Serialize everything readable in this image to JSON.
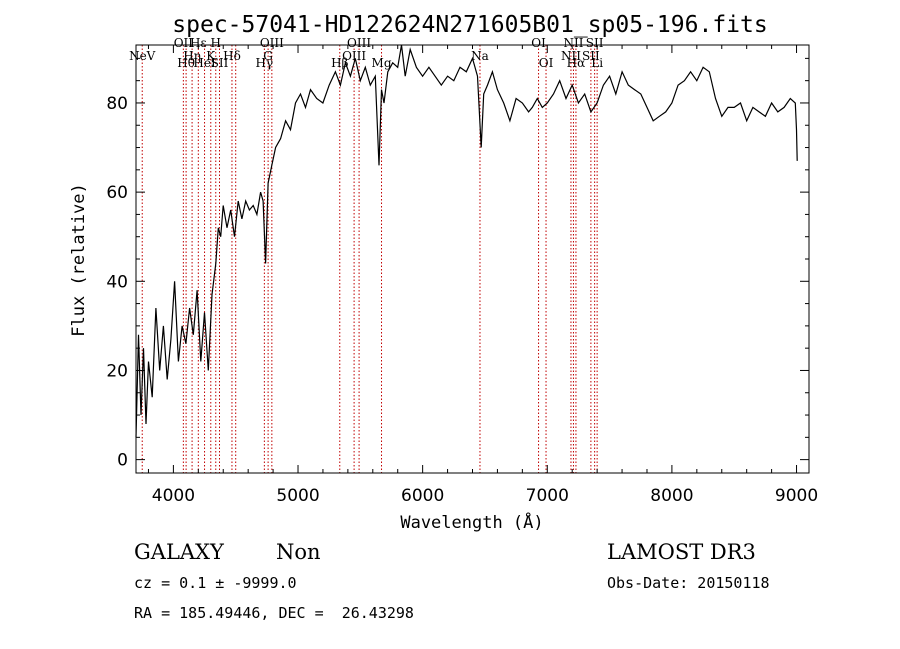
{
  "chart_data": {
    "type": "line",
    "title": "spec-57041-HD122624N271605B01_sp05-196.fits",
    "xlabel": "Wavelength (Å)",
    "ylabel": "Flux (relative)",
    "xlim": [
      3700,
      9100
    ],
    "ylim": [
      -3,
      93
    ],
    "x_ticks": [
      4000,
      5000,
      6000,
      7000,
      8000,
      9000
    ],
    "y_ticks": [
      0,
      20,
      40,
      60,
      80
    ],
    "series": [
      {
        "color": "#000000",
        "x": [
          3700,
          3720,
          3740,
          3760,
          3780,
          3800,
          3830,
          3860,
          3890,
          3920,
          3950,
          3980,
          4010,
          4040,
          4070,
          4100,
          4130,
          4160,
          4190,
          4220,
          4250,
          4280,
          4310,
          4340,
          4360,
          4380,
          4400,
          4430,
          4460,
          4490,
          4520,
          4550,
          4580,
          4610,
          4640,
          4670,
          4700,
          4720,
          4740,
          4760,
          4790,
          4820,
          4860,
          4900,
          4940,
          4980,
          5020,
          5060,
          5100,
          5150,
          5200,
          5250,
          5300,
          5340,
          5380,
          5420,
          5460,
          5500,
          5540,
          5580,
          5620,
          5650,
          5670,
          5690,
          5720,
          5760,
          5800,
          5830,
          5860,
          5900,
          5950,
          6000,
          6050,
          6100,
          6150,
          6200,
          6250,
          6300,
          6350,
          6400,
          6440,
          6470,
          6490,
          6520,
          6560,
          6600,
          6650,
          6700,
          6750,
          6800,
          6850,
          6880,
          6920,
          6960,
          7000,
          7050,
          7100,
          7150,
          7200,
          7250,
          7300,
          7350,
          7400,
          7450,
          7500,
          7550,
          7600,
          7650,
          7700,
          7750,
          7800,
          7850,
          7900,
          7950,
          8000,
          8050,
          8100,
          8150,
          8200,
          8250,
          8300,
          8350,
          8400,
          8450,
          8500,
          8550,
          8600,
          8650,
          8700,
          8750,
          8800,
          8850,
          8900,
          8950,
          8990,
          9000,
          9005
        ],
        "y": [
          5,
          28,
          10,
          25,
          8,
          22,
          14,
          34,
          20,
          30,
          18,
          27,
          40,
          22,
          30,
          26,
          34,
          28,
          38,
          22,
          33,
          20,
          37,
          44,
          52,
          50,
          57,
          52,
          56,
          50,
          58,
          54,
          58,
          56,
          57,
          55,
          60,
          58,
          44,
          62,
          66,
          70,
          72,
          76,
          74,
          80,
          82,
          79,
          83,
          81,
          80,
          84,
          87,
          84,
          89,
          86,
          90,
          85,
          88,
          84,
          86,
          66,
          83,
          80,
          87,
          89,
          88,
          93,
          86,
          92,
          88,
          86,
          88,
          86,
          84,
          86,
          85,
          88,
          87,
          90,
          86,
          70,
          82,
          84,
          87,
          83,
          80,
          76,
          81,
          80,
          78,
          79,
          81,
          79,
          80,
          82,
          85,
          81,
          84,
          80,
          82,
          78,
          80,
          84,
          86,
          82,
          87,
          84,
          83,
          82,
          79,
          76,
          77,
          78,
          80,
          84,
          85,
          87,
          85,
          88,
          87,
          81,
          77,
          79,
          79,
          80,
          76,
          79,
          78,
          77,
          80,
          78,
          79,
          81,
          80,
          74,
          67
        ]
      }
    ],
    "lines": [
      {
        "x": 3750,
        "label": "NeV"
      },
      {
        "x": 4080,
        "label": "OII"
      },
      {
        "x": 4102,
        "label": "Hθ"
      },
      {
        "x": 4150,
        "label": "Hη"
      },
      {
        "x": 4200,
        "label": "Hε"
      },
      {
        "x": 4250,
        "label": "HeI"
      },
      {
        "x": 4300,
        "label": "K"
      },
      {
        "x": 4340,
        "label": "H"
      },
      {
        "x": 4370,
        "label": "SII"
      },
      {
        "x": 4470,
        "label": "Hδ"
      },
      {
        "x": 4500,
        "label": ""
      },
      {
        "x": 4730,
        "label": "Hγ"
      },
      {
        "x": 4760,
        "label": "G"
      },
      {
        "x": 4790,
        "label": "OIII"
      },
      {
        "x": 5335,
        "label": "Hβ"
      },
      {
        "x": 5450,
        "label": "OIII"
      },
      {
        "x": 5490,
        "label": "OIII"
      },
      {
        "x": 5670,
        "label": "Mg"
      },
      {
        "x": 6460,
        "label": "Na"
      },
      {
        "x": 6930,
        "label": "OI"
      },
      {
        "x": 6990,
        "label": "OI"
      },
      {
        "x": 7190,
        "label": "NII"
      },
      {
        "x": 7210,
        "label": "NII"
      },
      {
        "x": 7230,
        "label": "Hα"
      },
      {
        "x": 7350,
        "label": "SII"
      },
      {
        "x": 7380,
        "label": "SII"
      },
      {
        "x": 7400,
        "label": "Li"
      }
    ]
  },
  "footer": {
    "class": "GALAXY",
    "subclass": "Non",
    "survey": "LAMOST DR3",
    "cz": "cz = 0.1 ± -9999.0",
    "obs_date": "Obs-Date: 20150118",
    "coords": "RA = 185.49446, DEC =  26.43298"
  }
}
